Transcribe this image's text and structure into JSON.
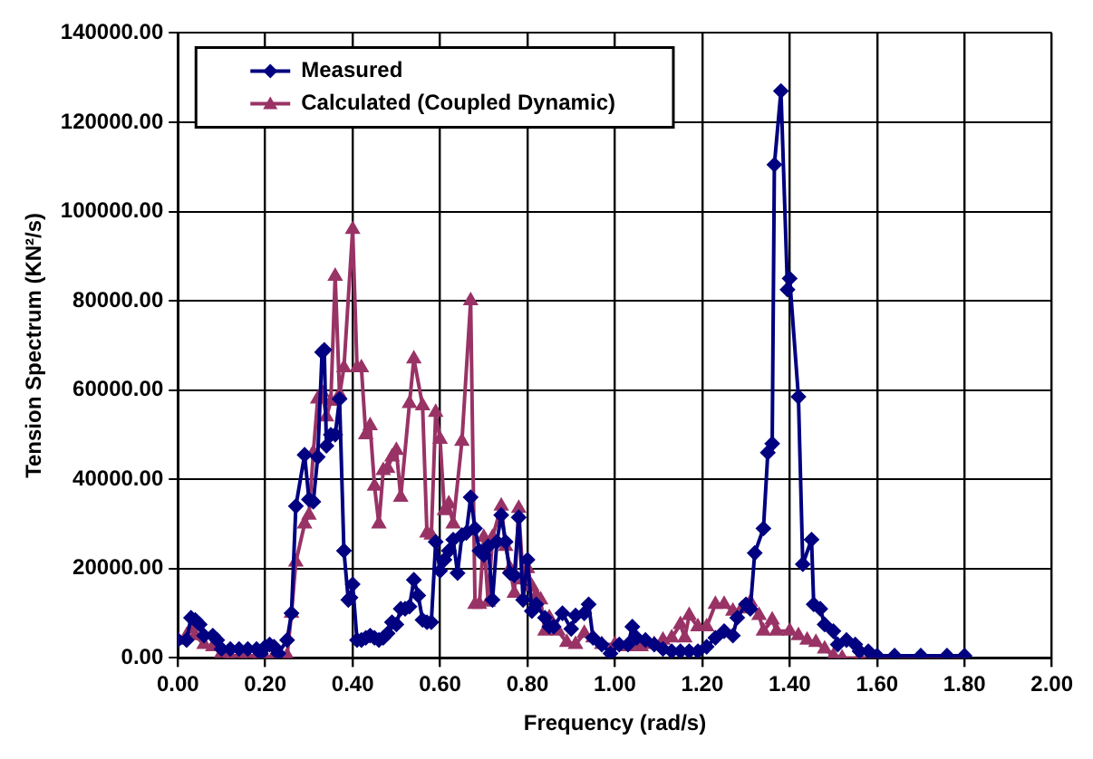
{
  "chart_data": {
    "type": "line",
    "xlabel": "Frequency (rad/s)",
    "ylabel": "Tension Spectrum (KN²/s)",
    "xlim": [
      0,
      2
    ],
    "xticks": [
      {
        "value": 0,
        "label": "0.00"
      },
      {
        "value": 0.2,
        "label": "0.20"
      },
      {
        "value": 0.4,
        "label": "0.40"
      },
      {
        "value": 0.6,
        "label": "0.60"
      },
      {
        "value": 0.8,
        "label": "0.80"
      },
      {
        "value": 1,
        "label": "1.00"
      },
      {
        "value": 1.2,
        "label": "1.20"
      },
      {
        "value": 1.4,
        "label": "1.40"
      },
      {
        "value": 1.6,
        "label": "1.60"
      },
      {
        "value": 1.8,
        "label": "1.80"
      },
      {
        "value": 2,
        "label": "2.00"
      }
    ],
    "ylim": [
      0,
      140000
    ],
    "yticks": [
      {
        "value": 0,
        "label": "0.00"
      },
      {
        "value": 20000,
        "label": "20000.00"
      },
      {
        "value": 40000,
        "label": "40000.00"
      },
      {
        "value": 60000,
        "label": "60000.00"
      },
      {
        "value": 80000,
        "label": "80000.00"
      },
      {
        "value": 100000,
        "label": "100000.00"
      },
      {
        "value": 120000,
        "label": "120000.00"
      },
      {
        "value": 140000,
        "label": "140000.00"
      }
    ],
    "grid": true,
    "legend": "top left",
    "line_style": "solid",
    "series": [
      {
        "name": "Measured",
        "color": "#000080",
        "marker": "diamond",
        "x": [
          0,
          0.02,
          0.03,
          0.04,
          0.05,
          0.06,
          0.08,
          0.09,
          0.1,
          0.12,
          0.14,
          0.16,
          0.18,
          0.19,
          0.2,
          0.21,
          0.22,
          0.23,
          0.25,
          0.26,
          0.27,
          0.29,
          0.3,
          0.31,
          0.32,
          0.33,
          0.335,
          0.34,
          0.35,
          0.36,
          0.37,
          0.38,
          0.39,
          0.395,
          0.4,
          0.41,
          0.42,
          0.43,
          0.44,
          0.45,
          0.46,
          0.47,
          0.48,
          0.49,
          0.5,
          0.51,
          0.52,
          0.53,
          0.54,
          0.55,
          0.56,
          0.57,
          0.58,
          0.59,
          0.6,
          0.61,
          0.62,
          0.63,
          0.64,
          0.65,
          0.66,
          0.67,
          0.68,
          0.69,
          0.7,
          0.71,
          0.72,
          0.73,
          0.74,
          0.75,
          0.76,
          0.77,
          0.78,
          0.79,
          0.8,
          0.81,
          0.82,
          0.84,
          0.85,
          0.86,
          0.88,
          0.9,
          0.91,
          0.93,
          0.94,
          0.95,
          0.97,
          0.99,
          1.01,
          1.03,
          1.04,
          1.05,
          1.07,
          1.09,
          1.11,
          1.13,
          1.15,
          1.17,
          1.19,
          1.21,
          1.23,
          1.25,
          1.27,
          1.28,
          1.3,
          1.31,
          1.32,
          1.34,
          1.35,
          1.36,
          1.365,
          1.38,
          1.395,
          1.4,
          1.42,
          1.43,
          1.45,
          1.455,
          1.47,
          1.48,
          1.5,
          1.51,
          1.53,
          1.55,
          1.56,
          1.58,
          1.6,
          1.64,
          1.7,
          1.76,
          1.8
        ],
        "values": [
          4000,
          4000,
          9000,
          8500,
          7500,
          5000,
          5000,
          4000,
          2000,
          2000,
          2000,
          2000,
          2000,
          1000,
          2500,
          3000,
          2500,
          1000,
          4000,
          10000,
          34000,
          45500,
          35500,
          35000,
          45000,
          68500,
          69000,
          47500,
          50000,
          50000,
          58000,
          24000,
          13000,
          13500,
          16500,
          4000,
          4000,
          4500,
          5000,
          4500,
          4000,
          4500,
          5500,
          8000,
          7500,
          11000,
          11000,
          11500,
          17500,
          14000,
          8500,
          8000,
          8000,
          26000,
          19500,
          22000,
          24000,
          26500,
          19000,
          27500,
          28000,
          36000,
          29000,
          24000,
          23000,
          25000,
          13000,
          26000,
          32000,
          26000,
          19000,
          18500,
          31500,
          13000,
          22000,
          10500,
          12000,
          9000,
          7000,
          7000,
          10000,
          6500,
          9500,
          10000,
          12000,
          4500,
          3000,
          1000,
          3000,
          3000,
          7000,
          4500,
          4000,
          3000,
          2000,
          1500,
          1500,
          1500,
          1500,
          2500,
          4500,
          6000,
          5000,
          9000,
          12000,
          11000,
          23500,
          29000,
          46000,
          48000,
          110500,
          127000,
          82500,
          85000,
          58500,
          21000,
          26500,
          12000,
          11000,
          7500,
          6000,
          3000,
          4000,
          3000,
          1500,
          1500,
          500,
          500,
          500,
          500,
          500
        ]
      },
      {
        "name": "Calculated (Coupled Dynamic)",
        "color": "#993366",
        "marker": "triangle",
        "x": [
          0,
          0.02,
          0.03,
          0.04,
          0.06,
          0.08,
          0.1,
          0.12,
          0.15,
          0.18,
          0.2,
          0.22,
          0.25,
          0.26,
          0.27,
          0.29,
          0.3,
          0.31,
          0.32,
          0.33,
          0.34,
          0.35,
          0.36,
          0.37,
          0.38,
          0.4,
          0.41,
          0.42,
          0.43,
          0.44,
          0.45,
          0.46,
          0.47,
          0.48,
          0.49,
          0.5,
          0.51,
          0.53,
          0.54,
          0.56,
          0.57,
          0.58,
          0.59,
          0.6,
          0.61,
          0.62,
          0.63,
          0.65,
          0.67,
          0.68,
          0.69,
          0.7,
          0.71,
          0.72,
          0.74,
          0.75,
          0.76,
          0.77,
          0.78,
          0.79,
          0.8,
          0.81,
          0.82,
          0.83,
          0.84,
          0.85,
          0.87,
          0.89,
          0.91,
          0.93,
          0.95,
          0.97,
          1,
          1.03,
          1.06,
          1.09,
          1.11,
          1.13,
          1.15,
          1.16,
          1.17,
          1.19,
          1.21,
          1.23,
          1.25,
          1.27,
          1.29,
          1.31,
          1.33,
          1.34,
          1.36,
          1.37,
          1.4,
          1.42,
          1.44,
          1.46,
          1.48,
          1.5,
          1.52,
          1.56,
          1.6,
          1.7,
          1.8
        ],
        "values": [
          4000,
          5000,
          6500,
          5000,
          3000,
          2500,
          1000,
          500,
          500,
          500,
          0,
          500,
          500,
          10000,
          21500,
          30000,
          32000,
          46000,
          58000,
          59500,
          54000,
          57500,
          85500,
          59000,
          65000,
          96000,
          65000,
          65000,
          50000,
          52000,
          38500,
          30000,
          42000,
          42500,
          45000,
          46500,
          36000,
          57000,
          67000,
          56500,
          28000,
          27500,
          55000,
          49000,
          33000,
          34500,
          30000,
          48500,
          80000,
          12000,
          12000,
          27000,
          12500,
          27000,
          34000,
          25000,
          20000,
          14500,
          33500,
          17500,
          20000,
          16000,
          14000,
          13000,
          6000,
          9000,
          6000,
          3500,
          3000,
          5500,
          4500,
          3000,
          3000,
          2500,
          2500,
          3000,
          4000,
          4500,
          7500,
          4500,
          9500,
          7000,
          7000,
          12000,
          12000,
          10500,
          11000,
          12500,
          9500,
          6000,
          8500,
          6000,
          6000,
          5000,
          4000,
          3500,
          2000,
          500,
          0,
          0,
          0,
          0,
          0
        ]
      }
    ]
  }
}
